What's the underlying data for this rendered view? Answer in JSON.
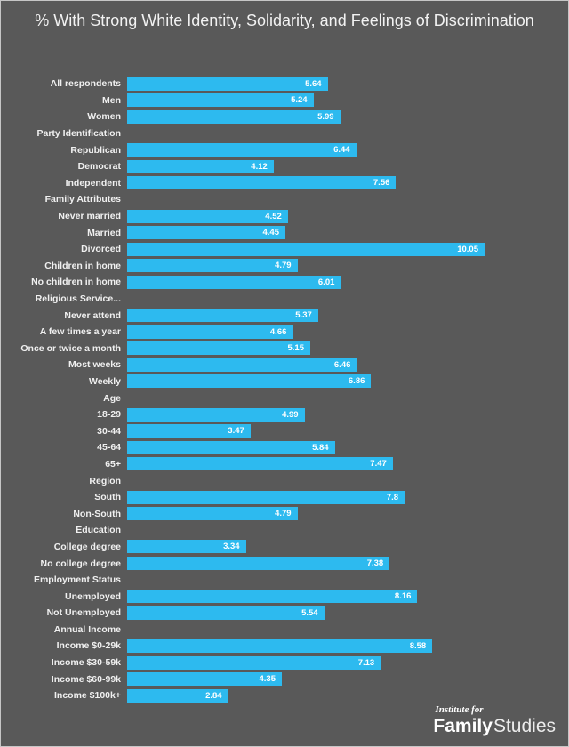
{
  "chart_data": {
    "type": "bar",
    "orientation": "horizontal",
    "title": "% With Strong White Identity, Solidarity, and Feelings of Discrimination",
    "xlabel": "",
    "ylabel": "",
    "xlim": [
      0,
      12.4
    ],
    "grid": false,
    "legend": "none",
    "value_labels": "inside-end",
    "rows": [
      {
        "label": "All respondents",
        "value": 5.64
      },
      {
        "label": "Men",
        "value": 5.24
      },
      {
        "label": "Women",
        "value": 5.99
      },
      {
        "label": "Party Identification",
        "header": true
      },
      {
        "label": "Republican",
        "value": 6.44
      },
      {
        "label": "Democrat",
        "value": 4.12
      },
      {
        "label": "Independent",
        "value": 7.56
      },
      {
        "label": "Family Attributes",
        "header": true
      },
      {
        "label": "Never married",
        "value": 4.52
      },
      {
        "label": "Married",
        "value": 4.45
      },
      {
        "label": "Divorced",
        "value": 10.05
      },
      {
        "label": "Children in home",
        "value": 4.79
      },
      {
        "label": "No children in home",
        "value": 6.01
      },
      {
        "label": "Religious Service...",
        "header": true
      },
      {
        "label": "Never attend",
        "value": 5.37
      },
      {
        "label": "A few times a year",
        "value": 4.66
      },
      {
        "label": "Once or twice a month",
        "value": 5.15
      },
      {
        "label": "Most weeks",
        "value": 6.46
      },
      {
        "label": "Weekly",
        "value": 6.86
      },
      {
        "label": "Age",
        "header": true
      },
      {
        "label": "18-29",
        "value": 4.99
      },
      {
        "label": "30-44",
        "value": 3.47
      },
      {
        "label": "45-64",
        "value": 5.84
      },
      {
        "label": "65+",
        "value": 7.47
      },
      {
        "label": "Region",
        "header": true
      },
      {
        "label": "South",
        "value": 7.8
      },
      {
        "label": "Non-South",
        "value": 4.79
      },
      {
        "label": "Education",
        "header": true
      },
      {
        "label": "College degree",
        "value": 3.34
      },
      {
        "label": "No college degree",
        "value": 7.38
      },
      {
        "label": "Employment Status",
        "header": true
      },
      {
        "label": "Unemployed",
        "value": 8.16
      },
      {
        "label": "Not Unemployed",
        "value": 5.54
      },
      {
        "label": "Annual Income",
        "header": true
      },
      {
        "label": "Income $0-29k",
        "value": 8.58
      },
      {
        "label": "Income $30-59k",
        "value": 7.13
      },
      {
        "label": "Income $60-99k",
        "value": 4.35
      },
      {
        "label": "Income $100k+",
        "value": 2.84
      }
    ]
  },
  "logo": {
    "line1": "Institute for",
    "line2_bold": "Family",
    "line2_light": "Studies"
  },
  "colors": {
    "background": "#595959",
    "bar": "#2dbaef",
    "label_text": "#f0f0f0",
    "value_text": "#ffffff",
    "title_text": "#f2f2f2",
    "frame_border": "#c6c6c6"
  }
}
